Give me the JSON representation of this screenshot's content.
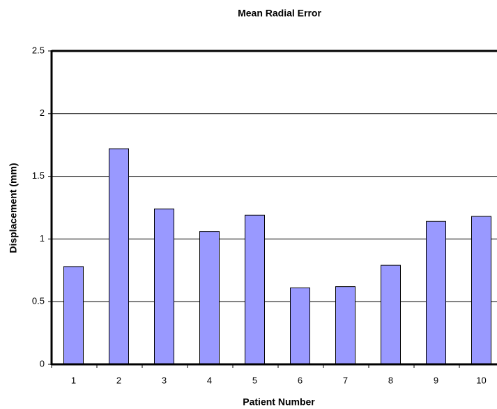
{
  "chart_data": {
    "type": "bar",
    "title": "Mean Radial Error",
    "x_label": "Patient Number",
    "y_label": "Displacement (mm)",
    "categories": [
      "1",
      "2",
      "3",
      "4",
      "5",
      "6",
      "7",
      "8",
      "9",
      "10"
    ],
    "values": [
      0.78,
      1.72,
      1.24,
      1.06,
      1.19,
      0.61,
      0.62,
      0.79,
      1.14,
      1.18
    ],
    "color": "#9999ff",
    "ylim": [
      0,
      2.5
    ],
    "yticks": [
      0,
      0.5,
      1,
      1.5,
      2,
      2.5
    ],
    "grid": true
  }
}
